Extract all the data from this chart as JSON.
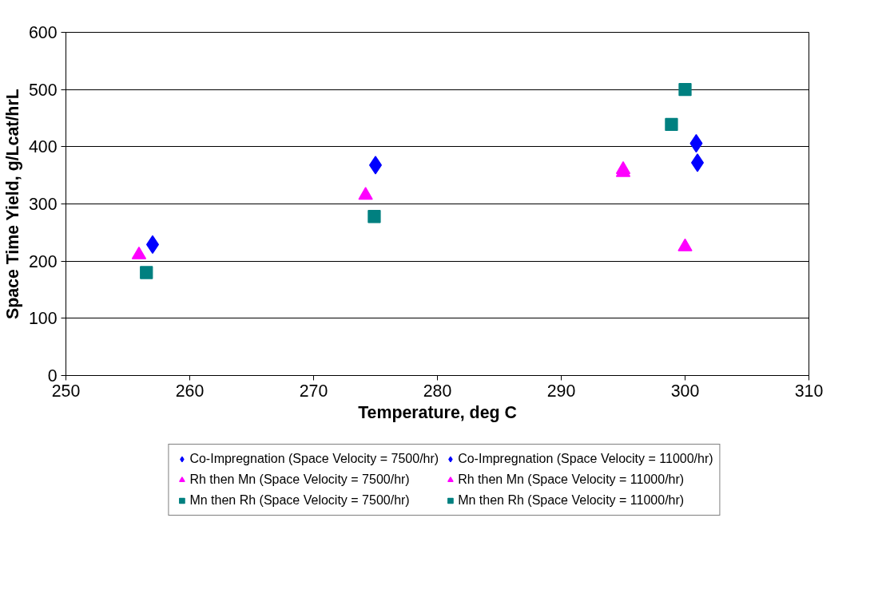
{
  "chart_data": {
    "type": "scatter",
    "xlabel": "Temperature, deg C",
    "ylabel": "Space Time Yield, g/Lcat/hrL",
    "xlim": [
      250,
      310
    ],
    "xticks": [
      250,
      260,
      270,
      280,
      290,
      300,
      310
    ],
    "ylim": [
      0,
      600
    ],
    "yticks": [
      0,
      100,
      200,
      300,
      400,
      500,
      600
    ],
    "grid": "y",
    "legend": "bottom",
    "series": [
      {
        "name": "Co-Impregnation (Space Velocity = 7500/hr)",
        "color": "#0000ff",
        "marker": "diamond",
        "x": [
          257.0,
          275.0
        ],
        "values": [
          229,
          368
        ]
      },
      {
        "name": "Rh then Mn (Space Velocity = 7500/hr)",
        "color": "#ff00ff",
        "marker": "triangle",
        "x": [
          255.9,
          274.2
        ],
        "values": [
          211,
          315
        ]
      },
      {
        "name": "Mn then Rh (Space Velocity = 7500/hr)",
        "color": "#008080",
        "marker": "square",
        "x": [
          256.5,
          274.9
        ],
        "values": [
          180,
          278
        ]
      },
      {
        "name": "Co-Impregnation (Space Velocity = 11000/hr)",
        "color": "#0000ff",
        "marker": "diamond",
        "x": [
          300.9,
          301.0
        ],
        "values": [
          406,
          372
        ]
      },
      {
        "name": "Rh then Mn (Space Velocity = 11000/hr)",
        "color": "#ff00ff",
        "marker": "triangle",
        "x": [
          295.0,
          295.0,
          300.0
        ],
        "values": [
          360,
          355,
          225
        ]
      },
      {
        "name": "Mn then Rh (Space Velocity = 11000/hr)",
        "color": "#008080",
        "marker": "square",
        "x": [
          298.9,
          300.0
        ],
        "values": [
          439,
          500
        ]
      }
    ]
  }
}
